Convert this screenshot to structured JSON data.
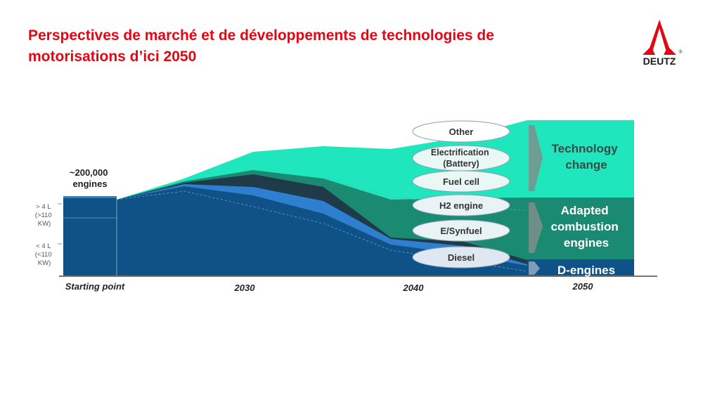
{
  "slide": {
    "title": "Perspectives de marché et de développements de technologies de motorisations d’ici 2050"
  },
  "logo": {
    "text": "DEUTZ",
    "mark": "®"
  },
  "colors": {
    "title": "#e30613",
    "diesel": "#0f5287",
    "efuel": "#2f7fd0",
    "h2": "#1a3f4f",
    "combustion": "#1a8a72",
    "techchange": "#1fe6bd",
    "logo": "#e30613"
  },
  "chart_data": {
    "type": "area",
    "x": [
      "Starting point",
      "2030",
      "2040",
      "2050"
    ],
    "starting_bar": {
      "label": "~200,000\nengines",
      "segments": [
        {
          "label": "> 4 L\n(>110\nKW)"
        },
        {
          "label": "< 4 L\n(<110\nKW)"
        }
      ]
    },
    "technologies": [
      "Other",
      "Electrification\n(Battery)",
      "Fuel cell",
      "H2 engine",
      "E/Synfuel",
      "Diesel"
    ],
    "groups": [
      {
        "name": "Technology\nchange",
        "color": "#1fe6bd"
      },
      {
        "name": "Adapted\ncombustion\nengines",
        "color": "#1a8a72"
      },
      {
        "name": "D-engines",
        "color": "#0f5287"
      }
    ],
    "grid": false,
    "legend": "right"
  }
}
